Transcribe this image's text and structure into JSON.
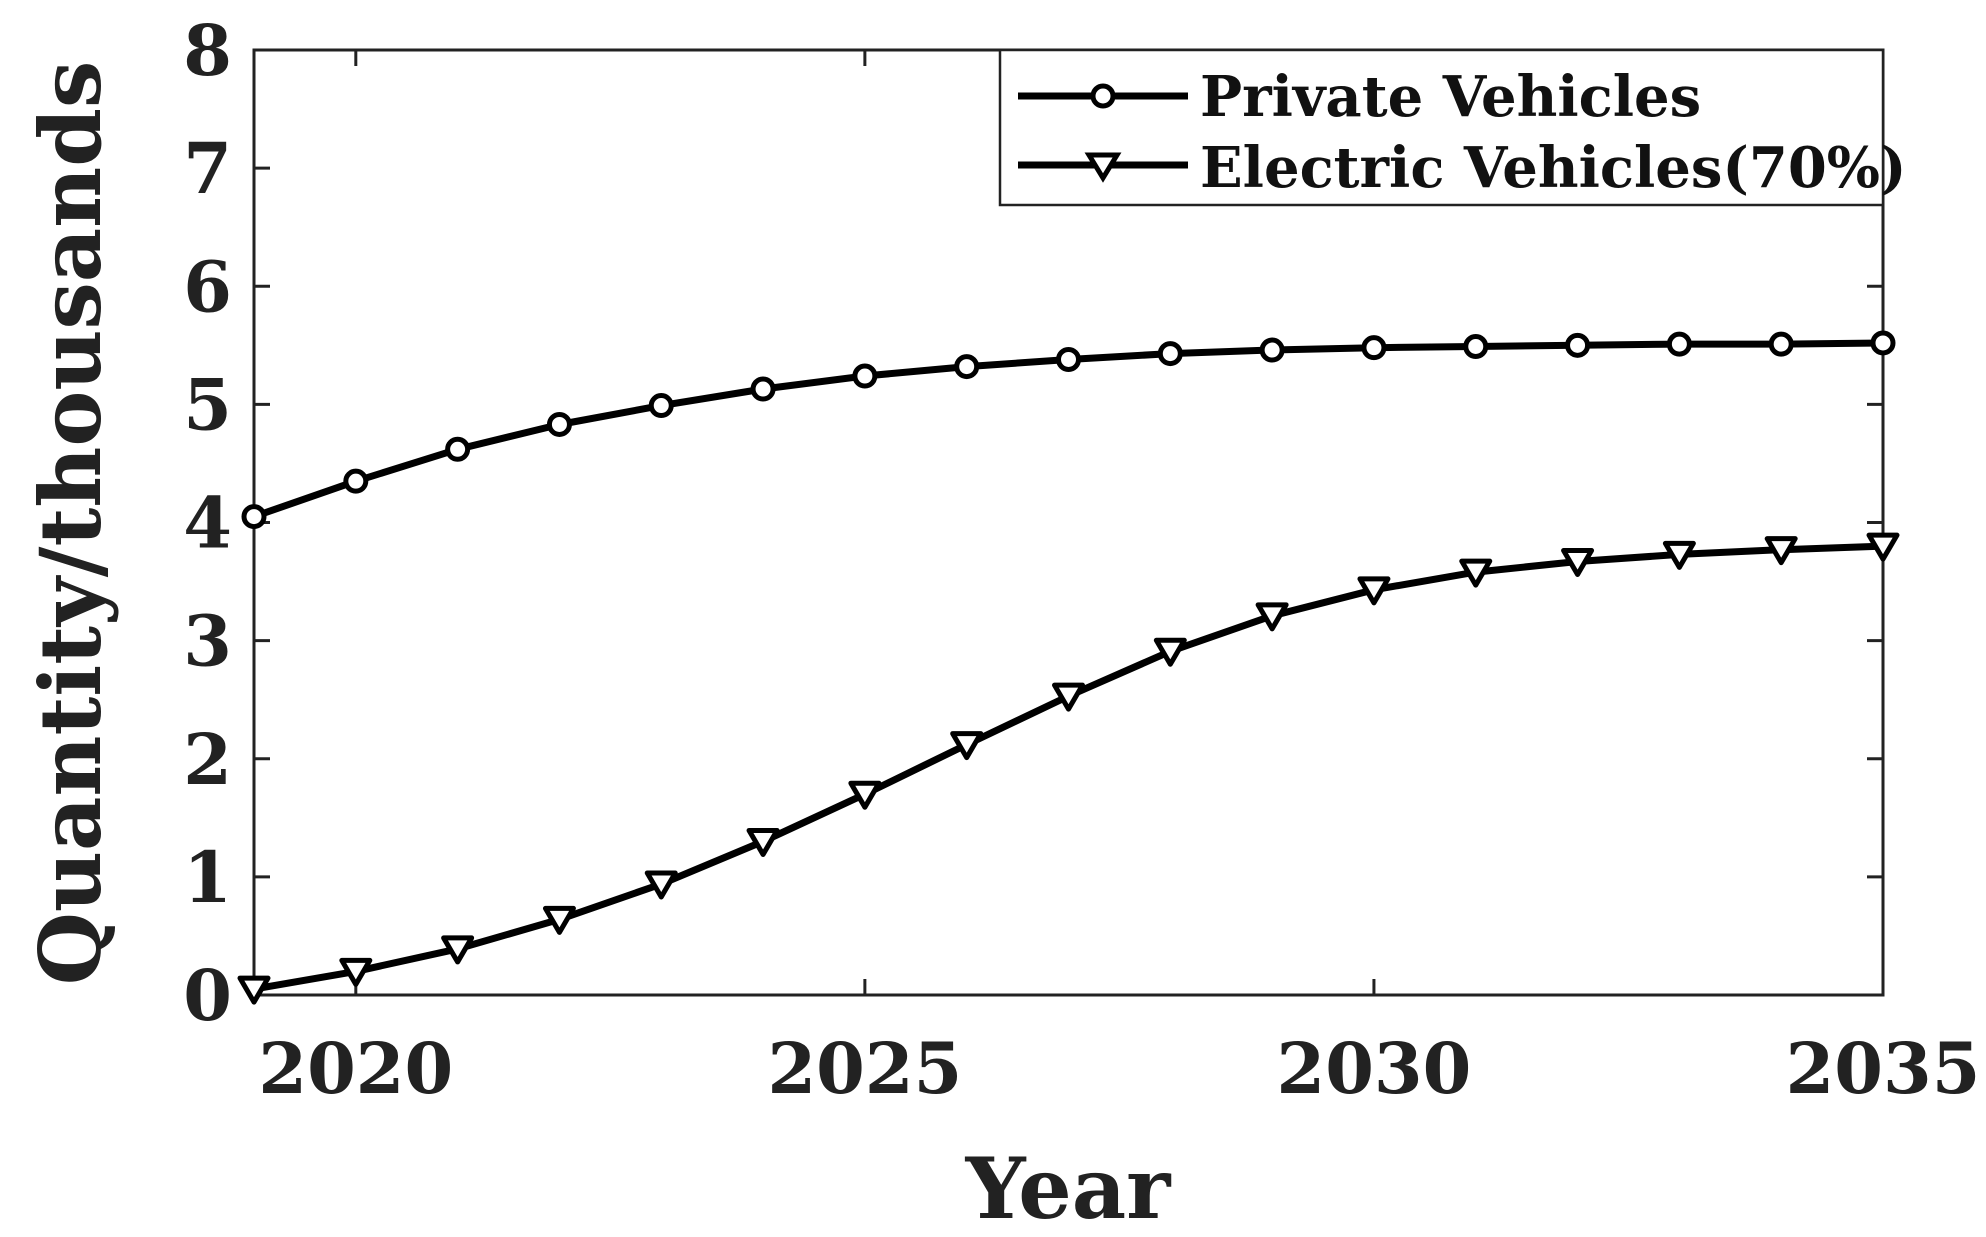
{
  "chart_data": {
    "type": "line",
    "title": "",
    "xlabel": "Year",
    "ylabel": "Quantity/thousands",
    "x": [
      2019,
      2020,
      2021,
      2022,
      2023,
      2024,
      2025,
      2026,
      2027,
      2028,
      2029,
      2030,
      2031,
      2032,
      2033,
      2034,
      2035
    ],
    "xlim": [
      2019,
      2035
    ],
    "ylim": [
      0,
      8
    ],
    "xticks": [
      2020,
      2025,
      2030,
      2035
    ],
    "xtick_labels": [
      "2020",
      "2025",
      "2030",
      "2035"
    ],
    "yticks": [
      0,
      1,
      2,
      3,
      4,
      5,
      6,
      7,
      8
    ],
    "ytick_labels": [
      "0",
      "1",
      "2",
      "3",
      "4",
      "5",
      "6",
      "7",
      "8"
    ],
    "grid": false,
    "legend_position": "top-right",
    "series": [
      {
        "name": "Private Vehicles",
        "marker": "circle",
        "color": "#000000",
        "values": [
          4.05,
          4.35,
          4.62,
          4.83,
          4.99,
          5.13,
          5.24,
          5.32,
          5.38,
          5.43,
          5.46,
          5.48,
          5.49,
          5.5,
          5.51,
          5.51,
          5.52
        ]
      },
      {
        "name": "Electric Vehicles(70%)",
        "marker": "triangle-down",
        "color": "#000000",
        "values": [
          0.05,
          0.2,
          0.39,
          0.64,
          0.94,
          1.3,
          1.7,
          2.12,
          2.53,
          2.91,
          3.21,
          3.43,
          3.58,
          3.67,
          3.73,
          3.77,
          3.8
        ]
      }
    ]
  }
}
